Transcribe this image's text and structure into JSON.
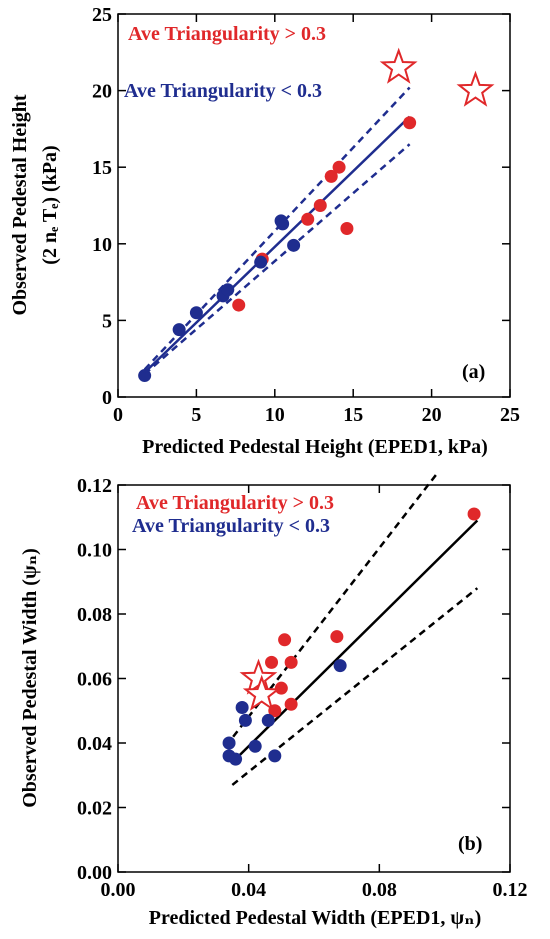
{
  "colors": {
    "red": "#e0282a",
    "blue": "#1f2d8f",
    "black": "#000000"
  },
  "chart_data": [
    {
      "type": "scatter",
      "panel_label": "(a)",
      "xlabel": "Predicted Pedestal Height (EPED1, kPa)",
      "ylabel": "Observed Pedestal Height",
      "ylabel_line2": "(2 nₑ Tₑ) (kPa)",
      "xlim": [
        0,
        25
      ],
      "ylim": [
        0,
        25
      ],
      "xticks": [
        0,
        5,
        10,
        15,
        20,
        25
      ],
      "yticks": [
        0,
        5,
        10,
        15,
        20,
        25
      ],
      "xtick_labels": [
        "0",
        "5",
        "10",
        "15",
        "20",
        "25"
      ],
      "ytick_labels": [
        "0",
        "5",
        "10",
        "15",
        "20",
        "25"
      ],
      "legend": [
        {
          "label": "Ave Triangularity > 0.3",
          "color": "#e0282a"
        },
        {
          "label": "Ave Triangularity < 0.3",
          "color": "#1f2d8f"
        }
      ],
      "series": [
        {
          "name": "Ave Triangularity > 0.3",
          "color": "#e0282a",
          "marker": "circle",
          "points": [
            [
              7.7,
              6.0
            ],
            [
              9.2,
              9.0
            ],
            [
              12.1,
              11.6
            ],
            [
              12.9,
              12.5
            ],
            [
              13.6,
              14.4
            ],
            [
              14.1,
              15.0
            ],
            [
              14.6,
              11.0
            ],
            [
              18.6,
              17.9
            ]
          ]
        },
        {
          "name": "Ave Triangularity < 0.3",
          "color": "#1f2d8f",
          "marker": "circle",
          "points": [
            [
              1.7,
              1.4
            ],
            [
              3.9,
              4.4
            ],
            [
              5.0,
              5.5
            ],
            [
              6.7,
              6.6
            ],
            [
              7.0,
              7.0
            ],
            [
              9.1,
              8.8
            ],
            [
              10.4,
              11.5
            ],
            [
              10.5,
              11.3
            ],
            [
              11.2,
              9.9
            ]
          ]
        },
        {
          "name": "stars",
          "color": "#e0282a",
          "marker": "star",
          "points": [
            [
              17.9,
              21.5
            ],
            [
              22.8,
              20.0
            ]
          ]
        }
      ],
      "fit_lines": [
        {
          "style": "solid",
          "color": "#1f2d8f",
          "points": [
            [
              1.7,
              1.6
            ],
            [
              18.6,
              18.3
            ]
          ]
        },
        {
          "style": "dashed",
          "color": "#1f2d8f",
          "points": [
            [
              1.7,
              1.8
            ],
            [
              18.6,
              20.2
            ]
          ]
        },
        {
          "style": "dashed",
          "color": "#1f2d8f",
          "points": [
            [
              1.7,
              1.5
            ],
            [
              18.6,
              16.5
            ]
          ]
        }
      ]
    },
    {
      "type": "scatter",
      "panel_label": "(b)",
      "xlabel": "Predicted Pedestal Width (EPED1, ψₙ)",
      "ylabel": "Observed Pedestal Width (ψₙ)",
      "xlim": [
        0,
        0.12
      ],
      "ylim": [
        0,
        0.12
      ],
      "xticks": [
        0,
        0.04,
        0.08,
        0.12
      ],
      "yticks": [
        0,
        0.02,
        0.04,
        0.06,
        0.08,
        0.1,
        0.12
      ],
      "xtick_labels": [
        "0.00",
        "0.04",
        "0.08",
        "0.12"
      ],
      "ytick_labels": [
        "0.00",
        "0.02",
        "0.04",
        "0.06",
        "0.08",
        "0.10",
        "0.12"
      ],
      "legend": [
        {
          "label": "Ave Triangularity > 0.3",
          "color": "#e0282a"
        },
        {
          "label": "Ave Triangularity < 0.3",
          "color": "#1f2d8f"
        }
      ],
      "series": [
        {
          "name": "Ave Triangularity > 0.3",
          "color": "#e0282a",
          "marker": "circle",
          "points": [
            [
              0.047,
              0.065
            ],
            [
              0.048,
              0.05
            ],
            [
              0.05,
              0.057
            ],
            [
              0.051,
              0.072
            ],
            [
              0.053,
              0.065
            ],
            [
              0.053,
              0.052
            ],
            [
              0.067,
              0.073
            ],
            [
              0.109,
              0.111
            ]
          ]
        },
        {
          "name": "Ave Triangularity < 0.3",
          "color": "#1f2d8f",
          "marker": "circle",
          "points": [
            [
              0.034,
              0.04
            ],
            [
              0.034,
              0.036
            ],
            [
              0.036,
              0.035
            ],
            [
              0.038,
              0.051
            ],
            [
              0.039,
              0.047
            ],
            [
              0.042,
              0.039
            ],
            [
              0.046,
              0.047
            ],
            [
              0.048,
              0.036
            ],
            [
              0.068,
              0.064
            ]
          ]
        },
        {
          "name": "stars",
          "color": "#e0282a",
          "marker": "star",
          "points": [
            [
              0.043,
              0.06
            ],
            [
              0.044,
              0.055
            ]
          ]
        }
      ],
      "fit_lines": [
        {
          "style": "solid",
          "color": "#000000",
          "points": [
            [
              0.036,
              0.035
            ],
            [
              0.11,
              0.109
            ]
          ]
        },
        {
          "style": "dashed",
          "color": "#000000",
          "points": [
            [
              0.033,
              0.039
            ],
            [
              0.098,
              0.124
            ]
          ]
        },
        {
          "style": "dashed",
          "color": "#000000",
          "points": [
            [
              0.035,
              0.027
            ],
            [
              0.11,
              0.088
            ]
          ]
        }
      ]
    }
  ]
}
